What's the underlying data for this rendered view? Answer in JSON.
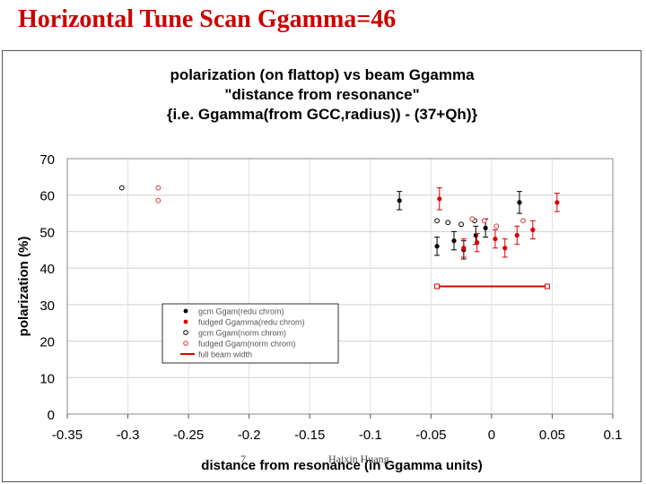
{
  "slide": {
    "title": "Horizontal Tune Scan Ggamma=46",
    "page_number": "7",
    "author": "Haixin Huang"
  },
  "chart_data": {
    "type": "scatter",
    "title_lines": [
      "polarization (on flattop) vs beam Ggamma",
      "\"distance from resonance\"",
      "{i.e. Ggamma(from GCC,radius)) - (37+Qh)}"
    ],
    "xlabel": "distance from resonance (in Ggamma units)",
    "ylabel": "polarization (%)",
    "xlim": [
      -0.35,
      0.1
    ],
    "ylim": [
      0,
      70
    ],
    "xticks": [
      -0.35,
      -0.3,
      -0.25,
      -0.2,
      -0.15,
      -0.1,
      -0.05,
      0,
      0.05,
      0.1
    ],
    "xtick_labels": [
      "-0.35",
      "-0.3",
      "-0.25",
      "-0.2",
      "-0.15",
      "-0.1",
      "-0.05",
      "0",
      "0.05",
      "0.1"
    ],
    "yticks": [
      0,
      10,
      20,
      30,
      40,
      50,
      60,
      70
    ],
    "ytick_labels": [
      "0",
      "10",
      "20",
      "30",
      "40",
      "50",
      "60",
      "70"
    ],
    "grid": true,
    "legend_position": "lower-left",
    "series": [
      {
        "name": "gcm Ggam(redu chrom)",
        "marker": "filled",
        "color": "#000000",
        "points": [
          {
            "x": -0.076,
            "y": 58.5,
            "err": 2.5
          },
          {
            "x": -0.045,
            "y": 46,
            "err": 2.5
          },
          {
            "x": -0.031,
            "y": 47.5,
            "err": 2.5
          },
          {
            "x": -0.023,
            "y": 45,
            "err": 2.5
          },
          {
            "x": -0.013,
            "y": 49,
            "err": 2.5
          },
          {
            "x": -0.005,
            "y": 51,
            "err": 2.5
          },
          {
            "x": 0.023,
            "y": 58,
            "err": 3
          }
        ]
      },
      {
        "name": "fudged Ggamma(redu chrom)",
        "marker": "filled",
        "color": "#dd0000",
        "points": [
          {
            "x": -0.043,
            "y": 59,
            "err": 3
          },
          {
            "x": -0.023,
            "y": 45.5,
            "err": 2.5
          },
          {
            "x": -0.012,
            "y": 47,
            "err": 2.5
          },
          {
            "x": 0.003,
            "y": 48,
            "err": 2.5
          },
          {
            "x": 0.011,
            "y": 45.5,
            "err": 2.5
          },
          {
            "x": 0.021,
            "y": 49,
            "err": 2.5
          },
          {
            "x": 0.034,
            "y": 50.5,
            "err": 2.5
          },
          {
            "x": 0.054,
            "y": 58,
            "err": 2.5
          }
        ]
      },
      {
        "name": "gcm Ggam(norm chrom)",
        "marker": "open",
        "color": "#000000",
        "points": [
          {
            "x": -0.305,
            "y": 62,
            "err": 0
          },
          {
            "x": -0.045,
            "y": 53,
            "err": 0
          },
          {
            "x": -0.036,
            "y": 52.5,
            "err": 0
          },
          {
            "x": -0.025,
            "y": 52,
            "err": 0
          },
          {
            "x": -0.014,
            "y": 53,
            "err": 0
          }
        ]
      },
      {
        "name": "fudged Ggam(norm chrom)",
        "marker": "open",
        "color": "#dd3333",
        "points": [
          {
            "x": -0.275,
            "y": 62,
            "err": 0
          },
          {
            "x": -0.275,
            "y": 58.5,
            "err": 0
          },
          {
            "x": -0.016,
            "y": 53.5,
            "err": 0
          },
          {
            "x": -0.006,
            "y": 53,
            "err": 0
          },
          {
            "x": 0.004,
            "y": 51.5,
            "err": 0
          },
          {
            "x": 0.026,
            "y": 53,
            "err": 0
          }
        ]
      },
      {
        "name": "full beam width",
        "marker": "line",
        "color": "#dd0000",
        "points": [
          {
            "x": -0.045,
            "y": 35
          },
          {
            "x": 0.046,
            "y": 35
          }
        ]
      }
    ]
  }
}
